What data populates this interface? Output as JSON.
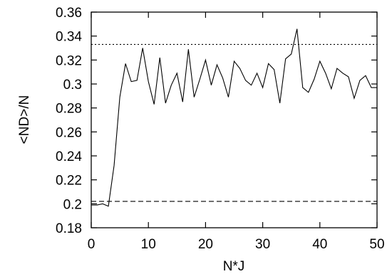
{
  "chart_data": {
    "type": "line",
    "xlabel": "N*J",
    "ylabel": "<ND>/N",
    "xlim": [
      0,
      50
    ],
    "ylim": [
      0.18,
      0.36
    ],
    "x_ticks": [
      "0",
      "10",
      "20",
      "30",
      "40",
      "50"
    ],
    "y_ticks": [
      "0.18",
      "0.2",
      "0.22",
      "0.24",
      "0.26",
      "0.28",
      "0.3",
      "0.32",
      "0.34",
      "0.36"
    ],
    "grid": false,
    "legend": "none",
    "series": [
      {
        "style": "solid",
        "color": "#000000",
        "x": [
          0,
          1,
          2,
          3,
          4,
          5,
          6,
          7,
          8,
          9,
          10,
          11,
          12,
          13,
          14,
          15,
          16,
          17,
          18,
          19,
          20,
          21,
          22,
          23,
          24,
          25,
          26,
          27,
          28,
          29,
          30,
          31,
          32,
          33,
          34,
          35,
          36,
          37,
          38,
          39,
          40,
          41,
          42,
          43,
          44,
          45,
          46,
          47,
          48,
          49,
          50
        ],
        "y": [
          0.199,
          0.199,
          0.2,
          0.198,
          0.232,
          0.289,
          0.317,
          0.302,
          0.303,
          0.33,
          0.302,
          0.283,
          0.322,
          0.284,
          0.299,
          0.309,
          0.285,
          0.329,
          0.289,
          0.304,
          0.32,
          0.299,
          0.316,
          0.305,
          0.289,
          0.319,
          0.313,
          0.303,
          0.299,
          0.309,
          0.297,
          0.317,
          0.312,
          0.284,
          0.321,
          0.325,
          0.346,
          0.297,
          0.293,
          0.304,
          0.319,
          0.309,
          0.296,
          0.313,
          0.309,
          0.306,
          0.288,
          0.303,
          0.307,
          0.297,
          0.297
        ]
      },
      {
        "style": "dotted",
        "color": "#000000",
        "x": [
          0,
          50
        ],
        "y": [
          0.333,
          0.333
        ]
      },
      {
        "style": "dashed",
        "color": "#000000",
        "x": [
          0,
          50
        ],
        "y": [
          0.202,
          0.202
        ]
      }
    ]
  }
}
